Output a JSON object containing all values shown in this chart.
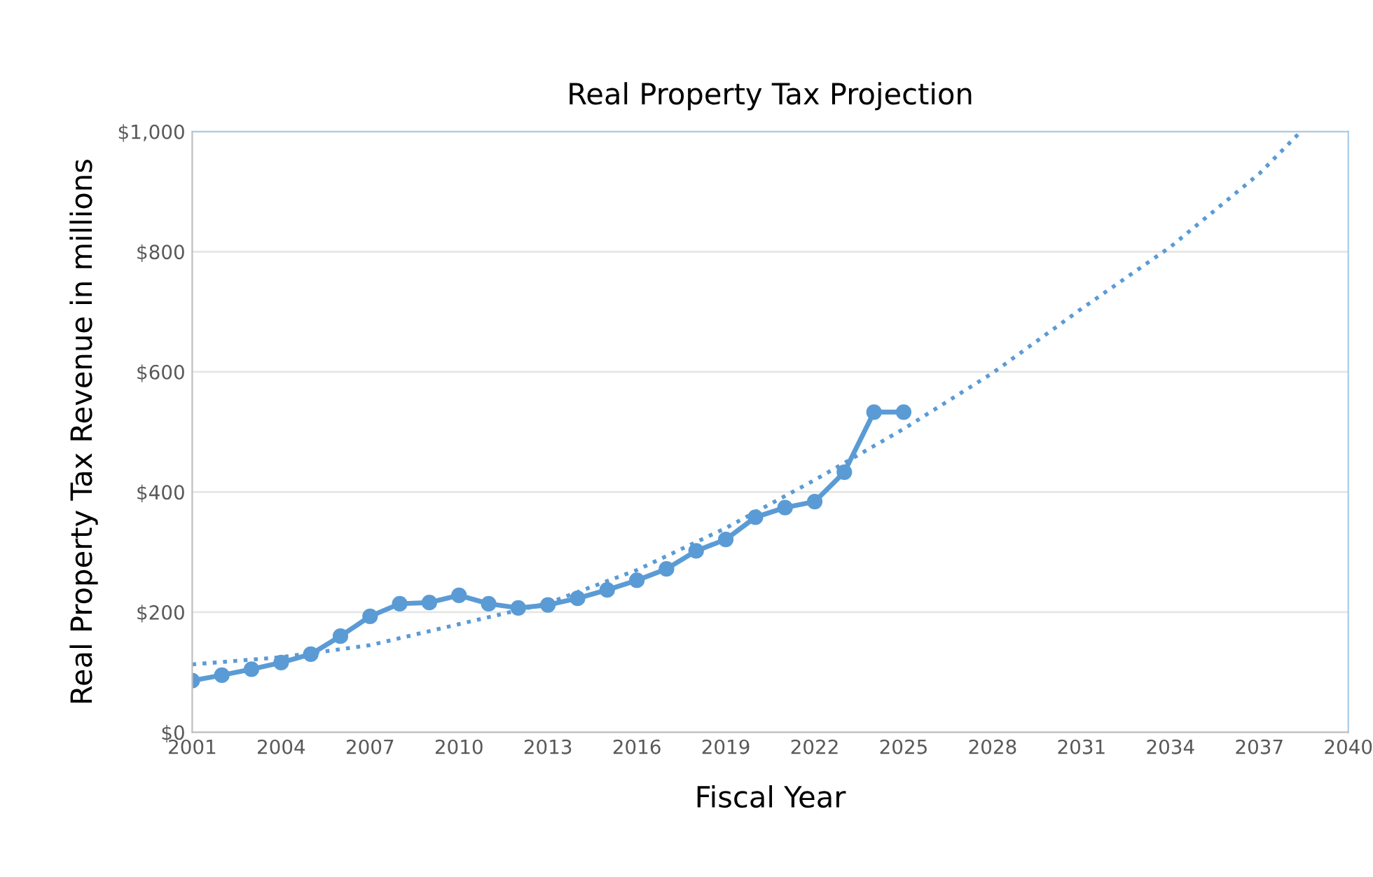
{
  "chart_data": {
    "type": "line",
    "title": "Real Property Tax Projection",
    "xlabel": "Fiscal Year",
    "ylabel": "Real Property Tax Revenue in millions",
    "series": [
      {
        "color": "#5b9bd5",
        "marker": "circle",
        "line_style": "solid",
        "x": [
          2001,
          2002,
          2003,
          2004,
          2005,
          2006,
          2007,
          2008,
          2009,
          2010,
          2011,
          2012,
          2013,
          2014,
          2015,
          2016,
          2017,
          2018,
          2019,
          2020,
          2021,
          2022,
          2023,
          2024,
          2025
        ],
        "values": [
          86,
          95,
          105,
          116,
          130,
          160,
          193,
          214,
          216,
          228,
          214,
          207,
          212,
          223,
          237,
          253,
          272,
          302,
          321,
          358,
          374,
          384,
          433,
          533,
          533
        ]
      },
      {
        "color": "#5b9bd5",
        "marker": "none",
        "line_style": "dotted",
        "x": [
          2001,
          2004,
          2007,
          2010,
          2013,
          2016,
          2019,
          2022,
          2025,
          2028,
          2031,
          2034,
          2037,
          2038.4
        ],
        "values": [
          113,
          125,
          145,
          180,
          215,
          270,
          340,
          420,
          505,
          598,
          705,
          808,
          930,
          1000
        ]
      }
    ],
    "xlim": [
      2001,
      2040
    ],
    "xticks": [
      2001,
      2004,
      2007,
      2010,
      2013,
      2016,
      2019,
      2022,
      2025,
      2028,
      2031,
      2034,
      2037,
      2040
    ],
    "ylim": [
      0,
      1000
    ],
    "yticks": [
      {
        "value": 0,
        "label": "$0"
      },
      {
        "value": 200,
        "label": "$200"
      },
      {
        "value": 400,
        "label": "$400"
      },
      {
        "value": 600,
        "label": "$600"
      },
      {
        "value": 800,
        "label": "$800"
      },
      {
        "value": 1000,
        "label": "$1,000"
      }
    ],
    "grid": "y"
  }
}
